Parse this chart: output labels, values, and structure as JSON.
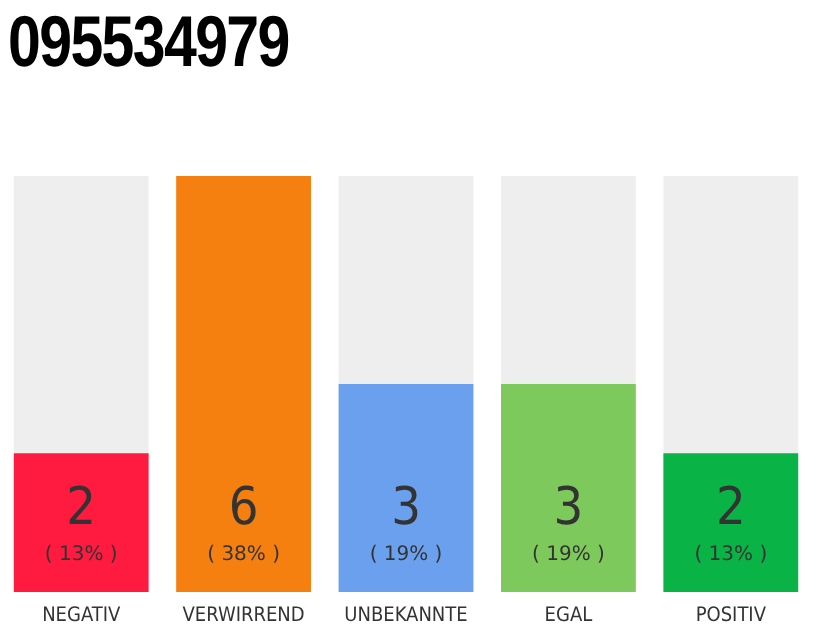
{
  "chart_data": {
    "type": "bar",
    "title": "095534979",
    "categories": [
      "NEGATIV",
      "VERWIRREND",
      "UNBEKANNTE",
      "EGAL",
      "POSITIV"
    ],
    "values": [
      2,
      6,
      3,
      3,
      2
    ],
    "colors": [
      "#ff1a40",
      "#f5800f",
      "#6aa0ee",
      "#7ec95c",
      "#0ab345"
    ],
    "data_labels": true,
    "value_labels": [
      "2\n( 13% )",
      "6\n( 38% )",
      "3\n( 19% )",
      "3\n( 19% )",
      "2\n( 13% )"
    ],
    "grid": false,
    "legend": false
  }
}
